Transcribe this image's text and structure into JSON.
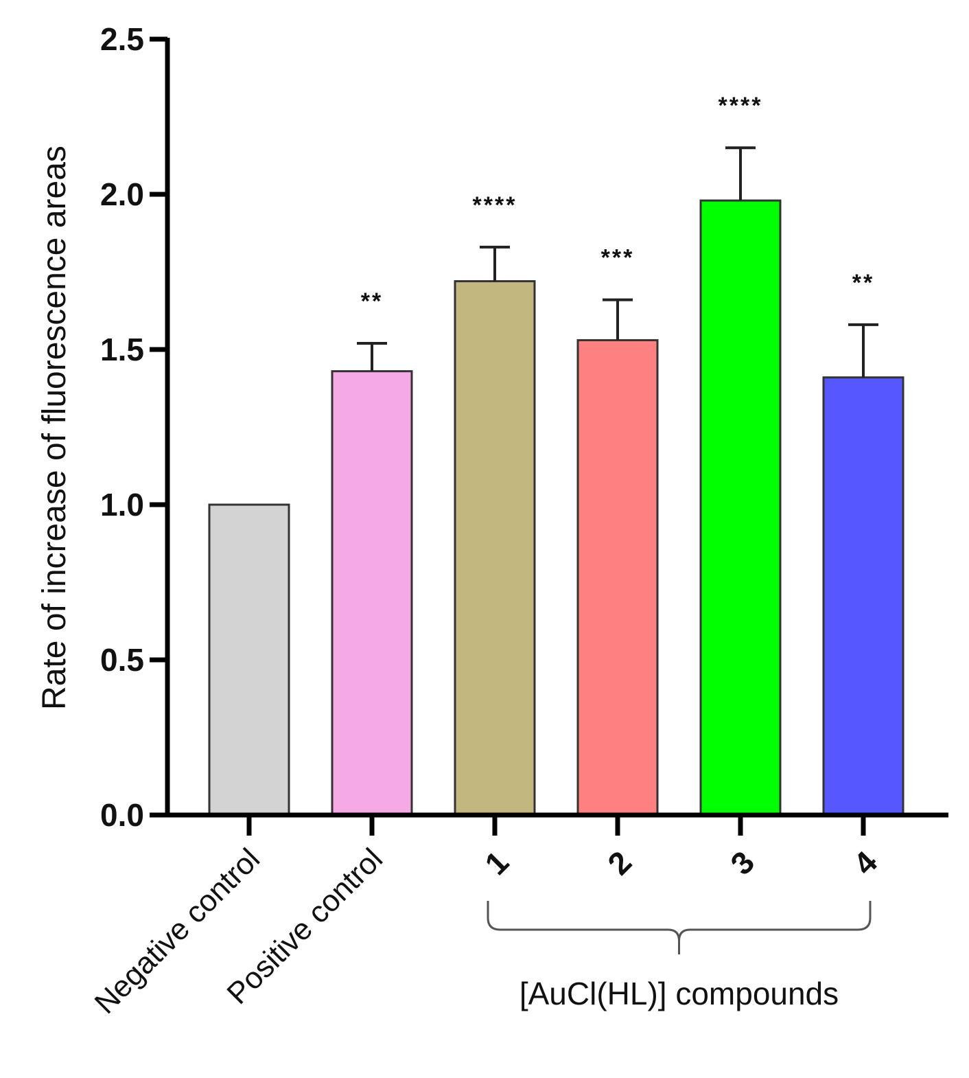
{
  "chart_data": {
    "type": "bar",
    "ylabel": "Rate of increase of fluorescence areas",
    "ylim": [
      0,
      2.5
    ],
    "yticks": [
      "0.0",
      "0.5",
      "1.0",
      "1.5",
      "2.0",
      "2.5"
    ],
    "categories": [
      "Negative control",
      "Positive control",
      "1",
      "2",
      "3",
      "4"
    ],
    "values": [
      1.0,
      1.43,
      1.72,
      1.53,
      1.98,
      1.41
    ],
    "errors": [
      0,
      0.09,
      0.11,
      0.13,
      0.17,
      0.17
    ],
    "significance": [
      "",
      "**",
      "****",
      "***",
      "****",
      "**"
    ],
    "colors": [
      "#d3d3d3",
      "#f5aae6",
      "#c2b77e",
      "#ff8080",
      "#00ff00",
      "#5757ff"
    ],
    "group": {
      "label": "[AuCl(HL)] compounds",
      "members": [
        "1",
        "2",
        "3",
        "4"
      ]
    },
    "grid": false,
    "legend": "none"
  }
}
